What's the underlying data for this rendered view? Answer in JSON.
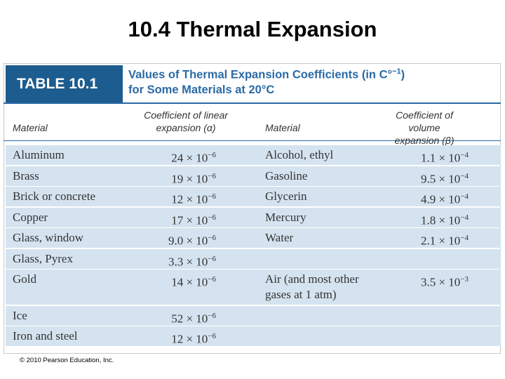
{
  "title": "10.4 Thermal Expansion",
  "table": {
    "label": "TABLE 10.1",
    "caption": {
      "line1": "Values of Thermal Expansion Coefficients (in C°",
      "line1_superscript": "−1",
      "line1_end": ")",
      "line2": "for Some Materials at 20°C"
    },
    "headers": [
      [
        "Material"
      ],
      [
        "Coefficient of linear",
        "expansion (α)"
      ],
      [
        "Material"
      ],
      [
        "Coefficient of volume",
        "expansion (β)"
      ]
    ],
    "rows": [
      {
        "material": "Aluminum",
        "linear": {
          "base": "24 × 10",
          "exponent": "−6"
        },
        "fluid": [
          "Alcohol, ethyl"
        ],
        "volume": {
          "base": "1.1 × 10",
          "exponent": "−4"
        }
      },
      {
        "material": "Brass",
        "linear": {
          "base": "19 × 10",
          "exponent": "−6"
        },
        "fluid": [
          "Gasoline"
        ],
        "volume": {
          "base": "9.5 × 10",
          "exponent": "−4"
        }
      },
      {
        "material": "Brick or concrete",
        "linear": {
          "base": "12 × 10",
          "exponent": "−6"
        },
        "fluid": [
          "Glycerin"
        ],
        "volume": {
          "base": "4.9 × 10",
          "exponent": "−4"
        }
      },
      {
        "material": "Copper",
        "linear": {
          "base": "17 × 10",
          "exponent": "−6"
        },
        "fluid": [
          "Mercury"
        ],
        "volume": {
          "base": "1.8 × 10",
          "exponent": "−4"
        }
      },
      {
        "material": "Glass, window",
        "linear": {
          "base": "9.0 × 10",
          "exponent": "−6"
        },
        "fluid": [
          "Water"
        ],
        "volume": {
          "base": "2.1 × 10",
          "exponent": "−4"
        }
      },
      {
        "material": "Glass, Pyrex",
        "linear": {
          "base": "3.3 × 10",
          "exponent": "−6"
        },
        "fluid": null,
        "volume": null
      },
      {
        "material": "Gold",
        "linear": {
          "base": "14 × 10",
          "exponent": "−6"
        },
        "fluid": [
          "Air (and most other",
          "gases at 1 atm)"
        ],
        "volume": {
          "base": "3.5 × 10",
          "exponent": "−3"
        }
      },
      {
        "material": "Ice",
        "linear": {
          "base": "52 × 10",
          "exponent": "−6"
        },
        "fluid": null,
        "volume": null
      },
      {
        "material": "Iron and steel",
        "linear": {
          "base": "12 × 10",
          "exponent": "−6"
        },
        "fluid": null,
        "volume": null
      }
    ]
  },
  "footer": "© 2010 Pearson Education, Inc."
}
